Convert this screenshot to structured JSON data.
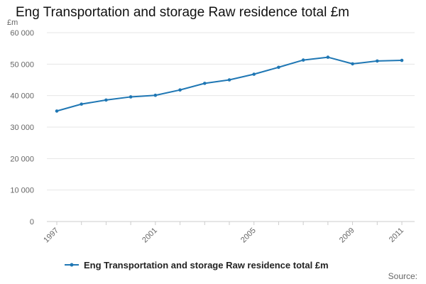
{
  "chart_data": {
    "type": "line",
    "title": "Eng Transportation and storage Raw residence total £m",
    "ylabel": "£m",
    "xlabel": "",
    "x": [
      1997,
      1998,
      1999,
      2000,
      2001,
      2002,
      2003,
      2004,
      2005,
      2006,
      2007,
      2008,
      2009,
      2010,
      2011
    ],
    "x_tick_labels": [
      "1997",
      "2001",
      "2005",
      "2009",
      "2011"
    ],
    "ylim": [
      0,
      60000
    ],
    "y_tick_labels": [
      "0",
      "10 000",
      "20 000",
      "30 000",
      "40 000",
      "50 000",
      "60 000"
    ],
    "grid": true,
    "legend_position": "bottom",
    "series": [
      {
        "name": "Eng Transportation and storage Raw residence total £m",
        "color": "#1f77b4",
        "values": [
          35100,
          37300,
          38600,
          39600,
          40100,
          41800,
          43900,
          45000,
          46800,
          49000,
          51300,
          52200,
          50100,
          51000,
          51200
        ]
      }
    ]
  },
  "source_label": "Source:"
}
